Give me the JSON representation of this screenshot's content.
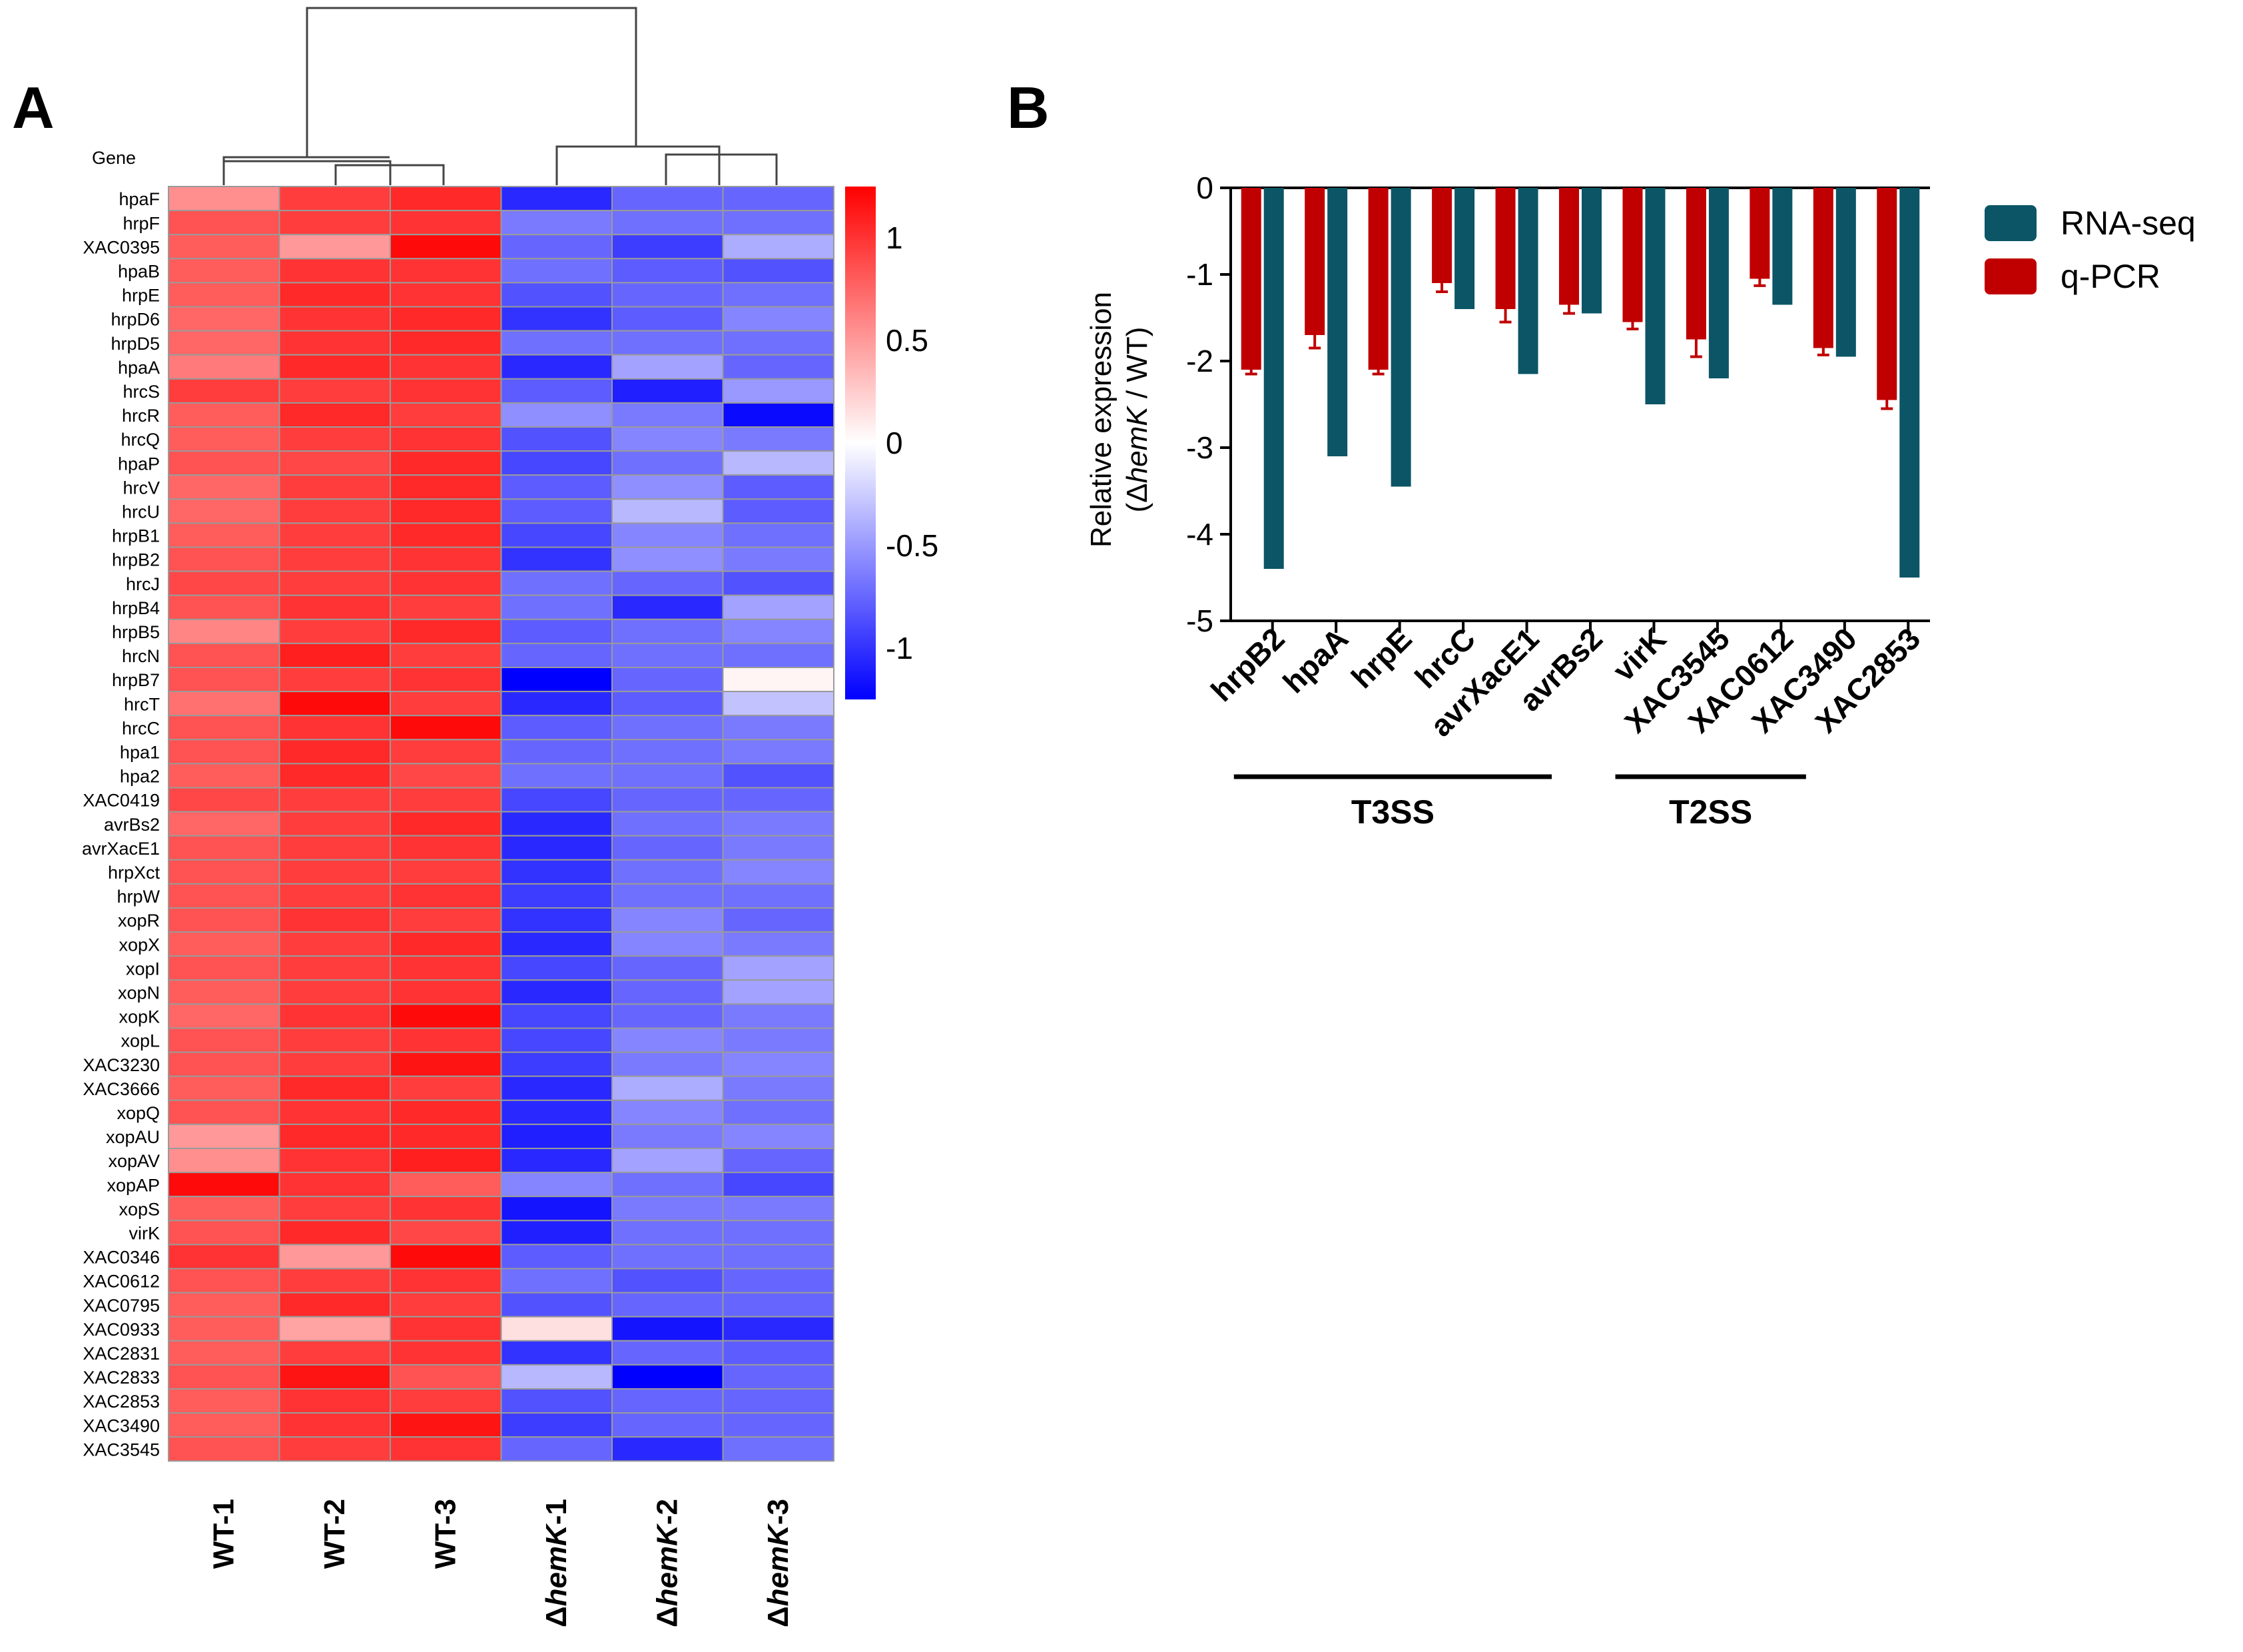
{
  "panel_a_letter": "A",
  "panel_b_letter": "B",
  "heatmap": {
    "gene_header": "Gene",
    "color_scale": {
      "low": "#0000ff",
      "mid": "#ffffff",
      "high": "#ff0000",
      "min": -1.25,
      "max": 1.25,
      "ticks": [
        "1",
        "0.5",
        "0",
        "-0.5",
        "-1"
      ],
      "tick_values": [
        1,
        0.5,
        0,
        -0.5,
        -1
      ]
    },
    "columns": [
      {
        "prefix": "",
        "italic": "",
        "suffix": "WT-1"
      },
      {
        "prefix": "",
        "italic": "",
        "suffix": "WT-2"
      },
      {
        "prefix": "",
        "italic": "",
        "suffix": "WT-3"
      },
      {
        "prefix": "Δ",
        "italic": "hemK",
        "suffix": "-1"
      },
      {
        "prefix": "Δ",
        "italic": "hemK",
        "suffix": "-2"
      },
      {
        "prefix": "Δ",
        "italic": "hemK",
        "suffix": "-3"
      }
    ],
    "genes": [
      "hpaF",
      "hrpF",
      "XAC0395",
      "hpaB",
      "hrpE",
      "hrpD6",
      "hrpD5",
      "hpaA",
      "hrcS",
      "hrcR",
      "hrcQ",
      "hpaP",
      "hrcV",
      "hrcU",
      "hrpB1",
      "hrpB2",
      "hrcJ",
      "hrpB4",
      "hrpB5",
      "hrcN",
      "hrpB7",
      "hrcT",
      "hrcC",
      "hpa1",
      "hpa2",
      "XAC0419",
      "avrBs2",
      "avrXacE1",
      "hrpXct",
      "hrpW",
      "xopR",
      "xopX",
      "xopI",
      "xopN",
      "xopK",
      "xopL",
      "XAC3230",
      "XAC3666",
      "xopQ",
      "xopAU",
      "xopAV",
      "xopAP",
      "xopS",
      "virK",
      "XAC0346",
      "XAC0612",
      "XAC0795",
      "XAC0933",
      "XAC2831",
      "XAC2833",
      "XAC2853",
      "XAC3490",
      "XAC3545"
    ],
    "values": [
      [
        0.55,
        0.95,
        1.05,
        -1.05,
        -0.75,
        -0.75
      ],
      [
        0.85,
        0.95,
        1.0,
        -0.65,
        -0.7,
        -0.7
      ],
      [
        0.8,
        0.5,
        1.2,
        -0.75,
        -0.95,
        -0.4
      ],
      [
        0.8,
        1.0,
        1.0,
        -0.7,
        -0.8,
        -0.85
      ],
      [
        0.8,
        1.05,
        1.0,
        -0.85,
        -0.75,
        -0.7
      ],
      [
        0.75,
        1.0,
        1.05,
        -1.0,
        -0.8,
        -0.6
      ],
      [
        0.75,
        1.0,
        1.05,
        -0.7,
        -0.7,
        -0.7
      ],
      [
        0.65,
        1.05,
        1.0,
        -1.05,
        -0.45,
        -0.75
      ],
      [
        0.95,
        0.95,
        1.0,
        -0.8,
        -1.1,
        -0.5
      ],
      [
        0.8,
        1.05,
        0.95,
        -0.55,
        -0.65,
        -1.2
      ],
      [
        0.8,
        0.95,
        1.0,
        -0.85,
        -0.6,
        -0.65
      ],
      [
        0.85,
        0.9,
        1.05,
        -0.9,
        -0.7,
        -0.35
      ],
      [
        0.75,
        0.95,
        1.05,
        -0.8,
        -0.55,
        -0.8
      ],
      [
        0.75,
        0.95,
        1.05,
        -0.8,
        -0.35,
        -0.8
      ],
      [
        0.8,
        0.95,
        1.05,
        -0.9,
        -0.6,
        -0.7
      ],
      [
        0.85,
        0.95,
        1.0,
        -1.0,
        -0.55,
        -0.65
      ],
      [
        0.9,
        0.95,
        1.0,
        -0.7,
        -0.75,
        -0.85
      ],
      [
        0.85,
        1.0,
        0.95,
        -0.7,
        -1.05,
        -0.45
      ],
      [
        0.6,
        0.95,
        1.05,
        -0.8,
        -0.7,
        -0.6
      ],
      [
        0.85,
        1.1,
        0.95,
        -0.75,
        -0.7,
        -0.7
      ],
      [
        0.85,
        0.95,
        1.0,
        -1.25,
        -0.75,
        0.05
      ],
      [
        0.7,
        1.2,
        0.95,
        -1.05,
        -0.8,
        -0.3
      ],
      [
        0.85,
        1.0,
        1.2,
        -0.8,
        -0.7,
        -0.65
      ],
      [
        0.85,
        1.05,
        0.95,
        -0.75,
        -0.7,
        -0.65
      ],
      [
        0.8,
        1.05,
        0.9,
        -0.7,
        -0.7,
        -0.85
      ],
      [
        0.9,
        0.95,
        0.95,
        -0.9,
        -0.75,
        -0.75
      ],
      [
        0.75,
        0.95,
        1.05,
        -1.05,
        -0.7,
        -0.65
      ],
      [
        0.85,
        0.95,
        1.0,
        -1.05,
        -0.75,
        -0.65
      ],
      [
        0.85,
        0.95,
        0.95,
        -1.0,
        -0.7,
        -0.6
      ],
      [
        0.85,
        0.95,
        1.0,
        -0.95,
        -0.7,
        -0.7
      ],
      [
        0.85,
        1.0,
        0.95,
        -1.0,
        -0.6,
        -0.75
      ],
      [
        0.8,
        0.95,
        1.05,
        -1.05,
        -0.6,
        -0.65
      ],
      [
        0.85,
        0.95,
        1.0,
        -0.9,
        -0.75,
        -0.45
      ],
      [
        0.8,
        0.95,
        1.0,
        -1.05,
        -0.75,
        -0.45
      ],
      [
        0.75,
        1.0,
        1.2,
        -0.9,
        -0.75,
        -0.65
      ],
      [
        0.85,
        0.95,
        1.0,
        -0.9,
        -0.6,
        -0.65
      ],
      [
        0.85,
        0.95,
        1.15,
        -0.95,
        -0.65,
        -0.6
      ],
      [
        0.8,
        1.05,
        0.95,
        -1.05,
        -0.4,
        -0.65
      ],
      [
        0.85,
        1.0,
        1.05,
        -1.05,
        -0.6,
        -0.7
      ],
      [
        0.5,
        1.05,
        1.05,
        -1.1,
        -0.65,
        -0.6
      ],
      [
        0.55,
        1.0,
        1.1,
        -1.05,
        -0.45,
        -0.75
      ],
      [
        1.2,
        1.0,
        0.8,
        -0.6,
        -0.7,
        -0.9
      ],
      [
        0.8,
        0.95,
        1.0,
        -1.15,
        -0.65,
        -0.65
      ],
      [
        0.85,
        1.05,
        0.9,
        -1.1,
        -0.7,
        -0.7
      ],
      [
        1.0,
        0.5,
        1.2,
        -0.8,
        -0.7,
        -0.7
      ],
      [
        0.85,
        0.95,
        1.0,
        -0.7,
        -0.85,
        -0.75
      ],
      [
        0.8,
        1.05,
        0.95,
        -0.85,
        -0.75,
        -0.75
      ],
      [
        0.8,
        0.45,
        1.0,
        0.15,
        -1.15,
        -1.05
      ],
      [
        0.8,
        0.95,
        1.0,
        -1.0,
        -0.75,
        -0.8
      ],
      [
        0.85,
        1.15,
        0.85,
        -0.35,
        -1.25,
        -0.75
      ],
      [
        0.8,
        1.0,
        0.95,
        -0.85,
        -0.75,
        -0.75
      ],
      [
        0.8,
        1.0,
        1.15,
        -0.95,
        -0.75,
        -0.75
      ],
      [
        0.85,
        0.95,
        1.0,
        -0.75,
        -1.05,
        -0.7
      ]
    ]
  },
  "chart_data": {
    "type": "bar",
    "title": "",
    "xlabel": "",
    "ylabel_line1": "Relative expression",
    "ylabel_line2": {
      "open": "(Δ",
      "italic": "hemK",
      "rest": " / WT)"
    },
    "ylim": [
      -5,
      0
    ],
    "yticks": [
      "0",
      "-1",
      "-2",
      "-3",
      "-4",
      "-5"
    ],
    "ytick_values": [
      0,
      -1,
      -2,
      -3,
      -4,
      -5
    ],
    "categories": [
      "hrpB2",
      "hpaA",
      "hrpE",
      "hrcC",
      "avrXacE1",
      "avrBs2",
      "virK",
      "XAC3545",
      "XAC0612",
      "XAC3490",
      "XAC2853"
    ],
    "series": [
      {
        "name": "q-PCR",
        "color": "#c00000",
        "values": [
          -2.1,
          -1.7,
          -2.1,
          -1.1,
          -1.4,
          -1.35,
          -1.55,
          -1.75,
          -1.05,
          -1.85,
          -2.45
        ],
        "errors": [
          0.05,
          0.15,
          0.05,
          0.1,
          0.15,
          0.1,
          0.08,
          0.2,
          0.08,
          0.08,
          0.1
        ]
      },
      {
        "name": "RNA-seq",
        "color": "#0b5566",
        "values": [
          -4.4,
          -3.1,
          -3.45,
          -1.4,
          -2.15,
          -1.45,
          -2.5,
          -2.2,
          -1.35,
          -1.95,
          -4.5
        ]
      }
    ],
    "legend": [
      {
        "label": "RNA-seq",
        "color": "#0b5566"
      },
      {
        "label": "q-PCR",
        "color": "#c00000"
      }
    ],
    "groups": [
      {
        "label": "T3SS",
        "categories": [
          "hrpB2",
          "hpaA",
          "hrpE",
          "hrcC",
          "avrXacE1"
        ]
      },
      {
        "label": "T2SS",
        "categories": [
          "virK",
          "XAC3545",
          "XAC0612"
        ]
      }
    ]
  }
}
